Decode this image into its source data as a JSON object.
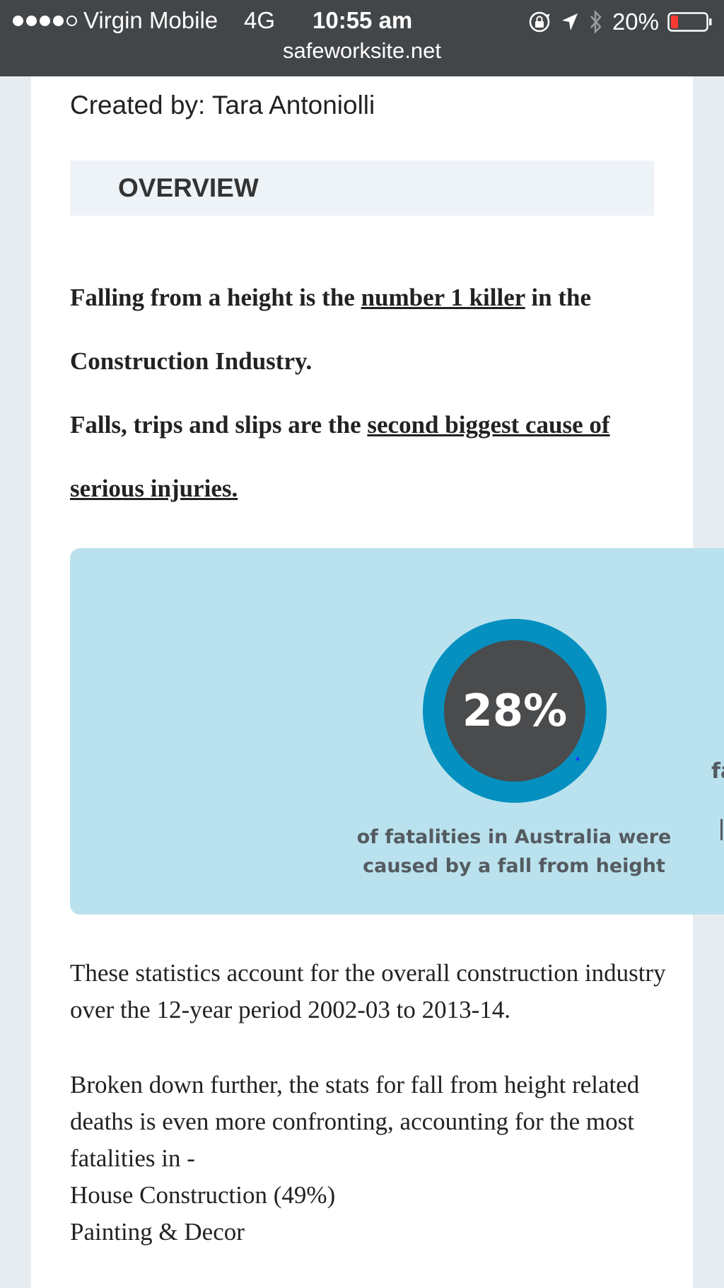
{
  "status_bar": {
    "carrier": "Virgin Mobile",
    "network": "4G",
    "time": "10:55 am",
    "battery_percent": "20%",
    "signal_bars_filled": 4,
    "signal_bars_total": 5,
    "url": "safeworksite.net"
  },
  "article": {
    "created_by": "Created by: Tara Antoniolli",
    "overview_title": "OVERVIEW",
    "para1": {
      "prefix": "Falling from a height is the ",
      "underlined": "number 1 killer",
      "suffix": " in the Construction Industry."
    },
    "para2": {
      "prefix": "Falls, trips and slips are the ",
      "underlined": "second biggest cause of serious injuries."
    },
    "infographic": {
      "stat_value": "28%",
      "stat_fraction": 0.28,
      "caption_line1": "of fatalities in Australia were",
      "caption_line2": "caused by a fall from height",
      "next_fragment": "fa",
      "colors": {
        "background": "#bae2ee",
        "ring": "#0590c0",
        "core": "#4a4b4d"
      }
    },
    "stats_paragraph": "These statistics account for the overall construction industry over the 12-year period 2002-03 to 2013-14.",
    "breakdown_paragraph": "Broken down further, the stats for fall from height related deaths is even more confronting, accounting for the most fatalities in -",
    "breakdown_items": [
      "House Construction (49%)",
      "Painting & Decor"
    ]
  }
}
